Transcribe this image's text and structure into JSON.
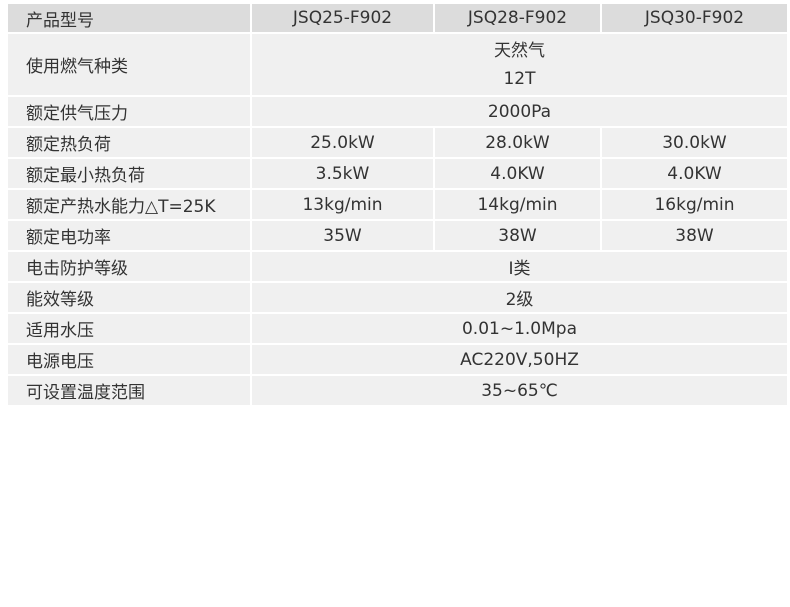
{
  "header": {
    "label": "产品型号",
    "models": [
      "JSQ25-F902",
      "JSQ28-F902",
      "JSQ30-F902"
    ]
  },
  "gas": {
    "label": "使用燃气种类",
    "type": "天然气",
    "code": "12T"
  },
  "rows": [
    {
      "label": "额定供气压力",
      "merged": "2000Pa"
    },
    {
      "label": "额定热负荷",
      "values": [
        "25.0kW",
        "28.0kW",
        "30.0kW"
      ]
    },
    {
      "label": "额定最小热负荷",
      "values": [
        "3.5kW",
        "4.0KW",
        "4.0KW"
      ]
    },
    {
      "label": "额定产热水能力△T=25K",
      "values": [
        "13kg/min",
        "14kg/min",
        "16kg/min"
      ]
    },
    {
      "label": "额定电功率",
      "values": [
        "35W",
        "38W",
        "38W"
      ]
    },
    {
      "label": "电击防护等级",
      "merged": "Ⅰ类"
    },
    {
      "label": "能效等级",
      "merged": "2级"
    },
    {
      "label": "适用水压",
      "merged": "0.01~1.0Mpa"
    },
    {
      "label": "电源电压",
      "merged": "AC220V,50HZ"
    },
    {
      "label": "可设置温度范围",
      "merged": "35~65℃"
    }
  ]
}
